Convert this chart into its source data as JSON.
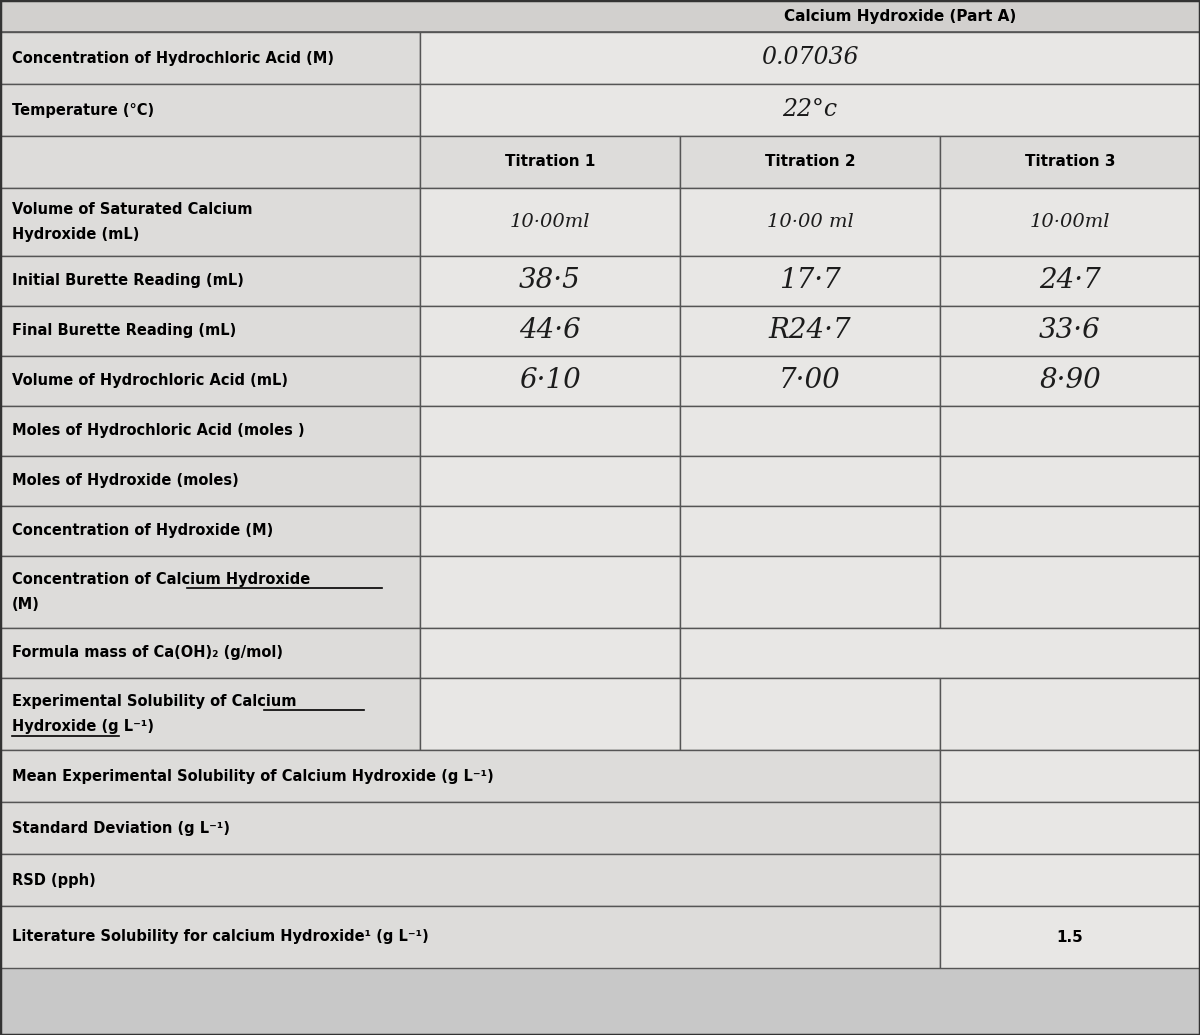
{
  "bg_color": "#c8c8c8",
  "table_bg": "#e8e7e5",
  "label_bg": "#dddcda",
  "cell_bg": "#e8e7e5",
  "border_color": "#555555",
  "title_partial": "Calcium Hydroxide (Part A)",
  "top_rows": [
    {
      "label": "Concentration of Hydrochloric Acid (M)",
      "value": "0.07036"
    },
    {
      "label": "Temperature (°C)",
      "value": "22°c"
    }
  ],
  "titration_headers": [
    "Titration 1",
    "Titration 2",
    "Titration 3"
  ],
  "data_rows": [
    {
      "label_line1": "Volume of Saturated Calcium",
      "label_line2": "Hydroxide (mL)",
      "values": [
        "10·00ml",
        "10·00 ml",
        "10·00ml"
      ],
      "handwritten": true,
      "hw_size": 14,
      "two_line": true
    },
    {
      "label_line1": "Initial Burette Reading (mL)",
      "label_line2": "",
      "values": [
        "38·5",
        "17·7",
        "24·7"
      ],
      "handwritten": true,
      "hw_size": 20,
      "two_line": false
    },
    {
      "label_line1": "Final Burette Reading (mL)",
      "label_line2": "",
      "values": [
        "44·6",
        "R24·7",
        "33·6"
      ],
      "handwritten": true,
      "hw_size": 20,
      "two_line": false
    },
    {
      "label_line1": "Volume of Hydrochloric Acid (mL)",
      "label_line2": "",
      "values": [
        "6·10",
        "7·00",
        "8·90"
      ],
      "handwritten": true,
      "hw_size": 20,
      "two_line": false
    },
    {
      "label_line1": "Moles of Hydrochloric Acid (moles )",
      "label_line2": "",
      "values": [
        "",
        "",
        ""
      ],
      "handwritten": false,
      "hw_size": 11,
      "two_line": false
    },
    {
      "label_line1": "Moles of Hydroxide (moles)",
      "label_line2": "",
      "values": [
        "",
        "",
        ""
      ],
      "handwritten": false,
      "hw_size": 11,
      "two_line": false
    },
    {
      "label_line1": "Concentration of Hydroxide (M)",
      "label_line2": "",
      "values": [
        "",
        "",
        ""
      ],
      "handwritten": false,
      "hw_size": 11,
      "two_line": false
    },
    {
      "label_line1": "Concentration of Calcium Hydroxide",
      "label_line2": "(M)",
      "underline_in_line1": "Calcium Hydroxide",
      "values": [
        "",
        "",
        ""
      ],
      "handwritten": false,
      "hw_size": 11,
      "two_line": true
    },
    {
      "label_line1": "Formula mass of Ca(OH)₂ (g/mol)",
      "label_line2": "",
      "values": [
        "",
        "",
        ""
      ],
      "handwritten": false,
      "hw_size": 11,
      "two_line": false,
      "merged_last2": true
    },
    {
      "label_line1": "Experimental Solubility of Calcium",
      "label_line2": "Hydroxide (g L⁻¹)",
      "underline_in_line1": "Calcium",
      "underline_in_line2": "Hydroxide",
      "values": [
        "",
        "",
        ""
      ],
      "handwritten": false,
      "hw_size": 11,
      "two_line": true
    }
  ],
  "bottom_rows": [
    {
      "label": "Mean Experimental Solubility of Calcium Hydroxide (g L⁻¹)",
      "value": ""
    },
    {
      "label": "Standard Deviation (g L⁻¹)",
      "value": ""
    },
    {
      "label": "RSD (pph)",
      "value": ""
    },
    {
      "label": "Literature Solubility for calcium Hydroxide¹ (g L⁻¹)",
      "value": "1.5"
    }
  ]
}
